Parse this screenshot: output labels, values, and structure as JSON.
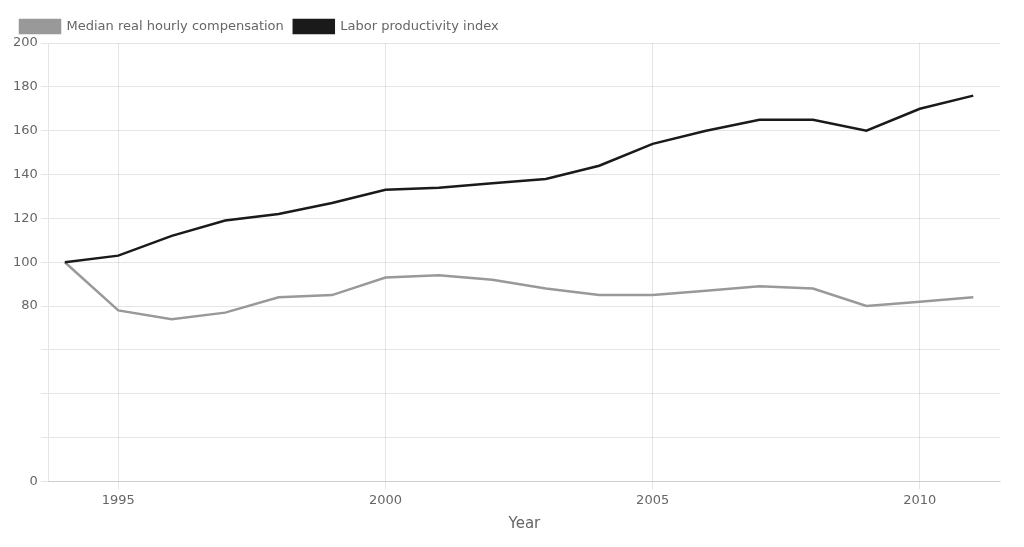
{
  "chart_data": {
    "type": "line",
    "x_label": "Year",
    "x": [
      1994,
      1995,
      1996,
      1997,
      1998,
      1999,
      2000,
      2001,
      2002,
      2003,
      2004,
      2005,
      2006,
      2007,
      2008,
      2009,
      2010,
      2011
    ],
    "series": [
      {
        "name": "Labor productivity index",
        "color": "#1a1a1a",
        "values": [
          100,
          103,
          112,
          119,
          122,
          127,
          133,
          134,
          136,
          138,
          144,
          154,
          160,
          165,
          165,
          160,
          170,
          176
        ]
      },
      {
        "name": "Median real hourly compensation",
        "color": "#999999",
        "values": [
          100,
          78,
          74,
          77,
          84,
          85,
          93,
          94,
          92,
          88,
          85,
          85,
          87,
          89,
          88,
          80,
          82,
          84
        ]
      }
    ],
    "xlim": [
      1993.7,
      2011.5
    ],
    "xticks": [
      1995,
      2000,
      2005,
      2010
    ],
    "ylim": [
      0,
      200
    ],
    "yticks": [
      0,
      {
        "value": 20,
        "label": null
      },
      {
        "value": 40,
        "label": null
      },
      {
        "value": 60,
        "label": null
      },
      80,
      100,
      120,
      140,
      160,
      180,
      200
    ],
    "grid": true,
    "legend": "upper left"
  }
}
